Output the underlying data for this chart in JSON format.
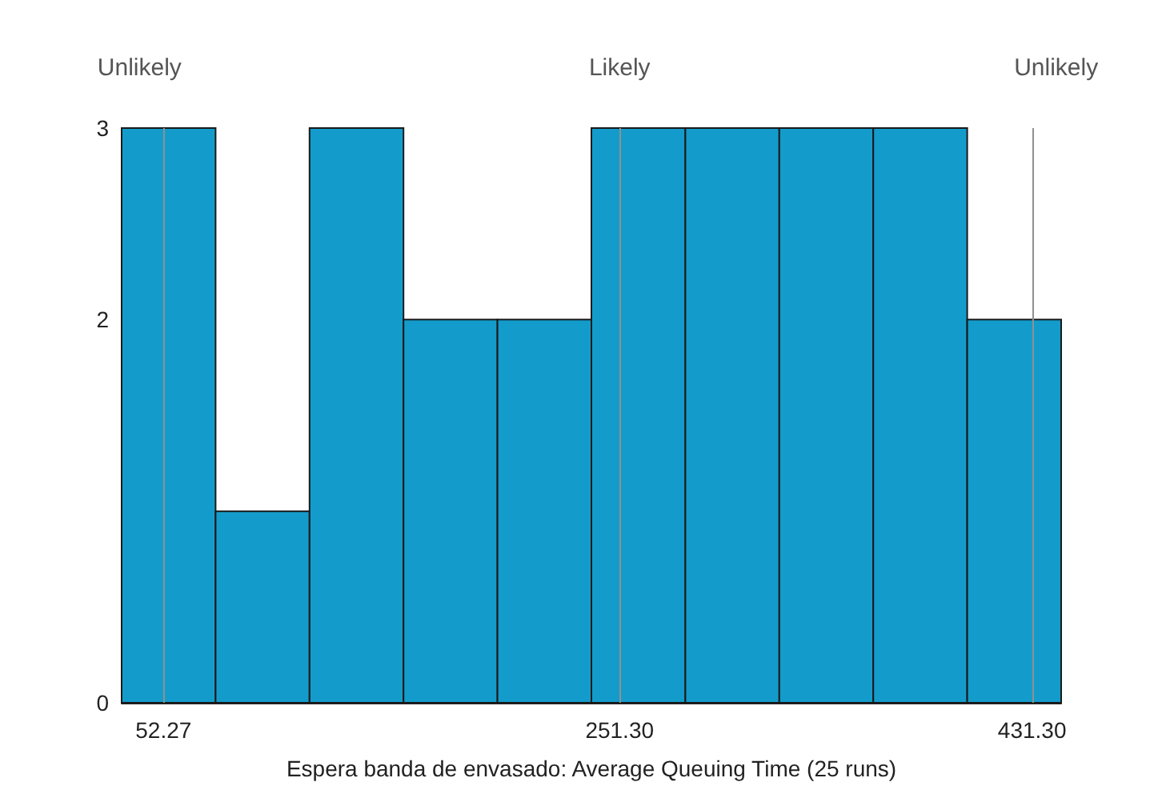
{
  "chart_data": {
    "type": "histogram",
    "xlabel": "Espera banda de envasado: Average Queuing Time (25 runs)",
    "bins": [
      34,
      75,
      116,
      157,
      198,
      239,
      280,
      321,
      362,
      403,
      444
    ],
    "values": [
      3,
      1,
      3,
      2,
      2,
      3,
      3,
      3,
      3,
      2
    ],
    "color": "#139ccb",
    "xlim": [
      34,
      444
    ],
    "xticks": [
      52.27,
      {
        "value": 251.3,
        "label": "251.30"
      },
      {
        "value": 431.3,
        "label": "431.30"
      }
    ],
    "ylim": [
      0,
      3
    ],
    "yticks": [
      0,
      2,
      3
    ],
    "grid": false,
    "ref_lines": [
      {
        "axis": "x",
        "value": 52.27,
        "color": "#909090",
        "label": "Unlikely"
      },
      {
        "axis": "x",
        "value": 251.3,
        "color": "#909090",
        "label": "Likely"
      },
      {
        "axis": "x",
        "value": 431.3,
        "color": "#909090",
        "label": "Unlikely"
      }
    ]
  }
}
